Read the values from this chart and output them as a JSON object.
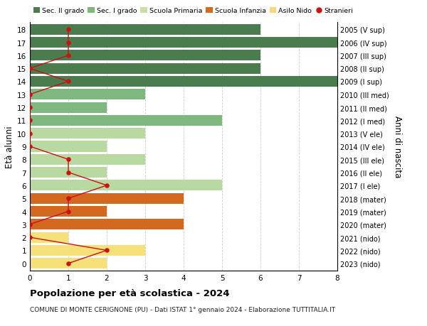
{
  "ages": [
    18,
    17,
    16,
    15,
    14,
    13,
    12,
    11,
    10,
    9,
    8,
    7,
    6,
    5,
    4,
    3,
    2,
    1,
    0
  ],
  "years": [
    "2005 (V sup)",
    "2006 (IV sup)",
    "2007 (III sup)",
    "2008 (II sup)",
    "2009 (I sup)",
    "2010 (III med)",
    "2011 (II med)",
    "2012 (I med)",
    "2013 (V ele)",
    "2014 (IV ele)",
    "2015 (III ele)",
    "2016 (II ele)",
    "2017 (I ele)",
    "2018 (mater)",
    "2019 (mater)",
    "2020 (mater)",
    "2021 (nido)",
    "2022 (nido)",
    "2023 (nido)"
  ],
  "bar_values": [
    6,
    8,
    6,
    6,
    8,
    3,
    2,
    5,
    3,
    2,
    3,
    2,
    5,
    4,
    2,
    4,
    1,
    3,
    2
  ],
  "bar_colors": [
    "#4a7c4e",
    "#4a7c4e",
    "#4a7c4e",
    "#4a7c4e",
    "#4a7c4e",
    "#7fb87f",
    "#7fb87f",
    "#7fb87f",
    "#b8d9a0",
    "#b8d9a0",
    "#b8d9a0",
    "#b8d9a0",
    "#b8d9a0",
    "#d2691e",
    "#d2691e",
    "#d2691e",
    "#f5e07a",
    "#f5e07a",
    "#f5e07a"
  ],
  "stranieri_values": [
    1,
    1,
    1,
    0,
    1,
    0,
    0,
    0,
    0,
    0,
    1,
    1,
    2,
    1,
    1,
    0,
    0,
    2,
    1
  ],
  "legend_labels": [
    "Sec. II grado",
    "Sec. I grado",
    "Scuola Primaria",
    "Scuola Infanzia",
    "Asilo Nido",
    "Stranieri"
  ],
  "legend_colors": [
    "#4a7c4e",
    "#7fb87f",
    "#c8dfa8",
    "#d2691e",
    "#f5d97a",
    "#cc1111"
  ],
  "ylabel_left": "Età alunni",
  "ylabel_right": "Anni di nascita",
  "title": "Popolazione per età scolastica - 2024",
  "subtitle": "COMUNE DI MONTE CERIGNONE (PU) - Dati ISTAT 1° gennaio 2024 - Elaborazione TUTTITALIA.IT",
  "xlim": [
    0,
    8
  ],
  "background_color": "#ffffff",
  "stranieri_color": "#cc1111",
  "grid_color": "#cccccc"
}
